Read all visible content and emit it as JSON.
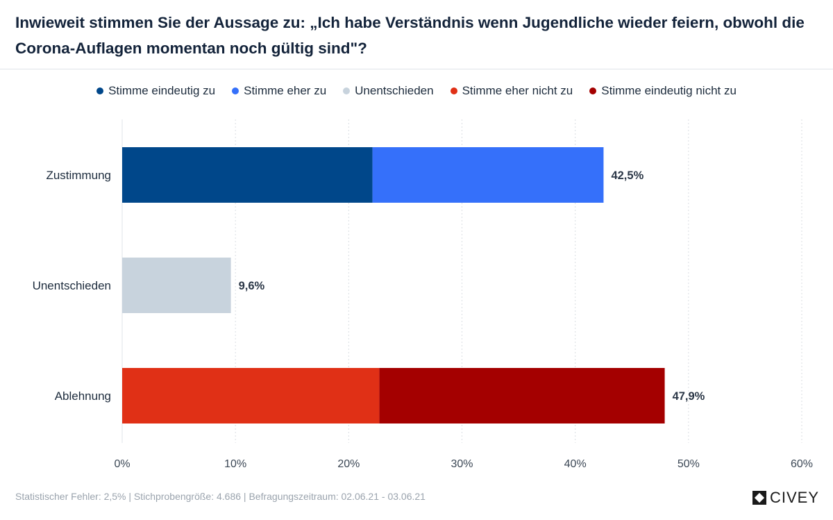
{
  "header": {
    "title": "Inwieweit stimmen Sie der Aussage zu: „Ich habe Verständnis wenn Jugendliche wieder feiern, obwohl die Corona-Auflagen momentan noch gültig sind\"?"
  },
  "legend": [
    {
      "label": "Stimme eindeutig zu",
      "color": "#00478a"
    },
    {
      "label": "Stimme eher zu",
      "color": "#3570fa"
    },
    {
      "label": "Unentschieden",
      "color": "#c8d3dd"
    },
    {
      "label": "Stimme eher nicht zu",
      "color": "#e03016"
    },
    {
      "label": "Stimme eindeutig nicht zu",
      "color": "#a40000"
    }
  ],
  "chart_data": {
    "type": "bar",
    "orientation": "horizontal",
    "stacked": true,
    "categories": [
      "Zustimmung",
      "Unentschieden",
      "Ablehnung"
    ],
    "rows": [
      {
        "category": "Zustimmung",
        "segments": [
          {
            "series": "Stimme eindeutig zu",
            "value": 22.1,
            "color": "#00478a"
          },
          {
            "series": "Stimme eher zu",
            "value": 20.4,
            "color": "#3570fa"
          }
        ],
        "total_label": "42,5%"
      },
      {
        "category": "Unentschieden",
        "segments": [
          {
            "series": "Unentschieden",
            "value": 9.6,
            "color": "#c8d3dd"
          }
        ],
        "total_label": "9,6%"
      },
      {
        "category": "Ablehnung",
        "segments": [
          {
            "series": "Stimme eher nicht zu",
            "value": 22.7,
            "color": "#e03016"
          },
          {
            "series": "Stimme eindeutig nicht zu",
            "value": 25.2,
            "color": "#a40000"
          }
        ],
        "total_label": "47,9%"
      }
    ],
    "xlim": [
      0,
      60
    ],
    "ticks": [
      0,
      10,
      20,
      30,
      40,
      50,
      60
    ],
    "tick_labels": [
      "0%",
      "10%",
      "20%",
      "30%",
      "40%",
      "50%",
      "60%"
    ],
    "grid": true
  },
  "footer": {
    "text": "Statistischer Fehler: 2,5% | Stichprobengröße: 4.686 | Befragungszeitraum: 02.06.21 - 03.06.21",
    "brand": "CIVEY"
  }
}
